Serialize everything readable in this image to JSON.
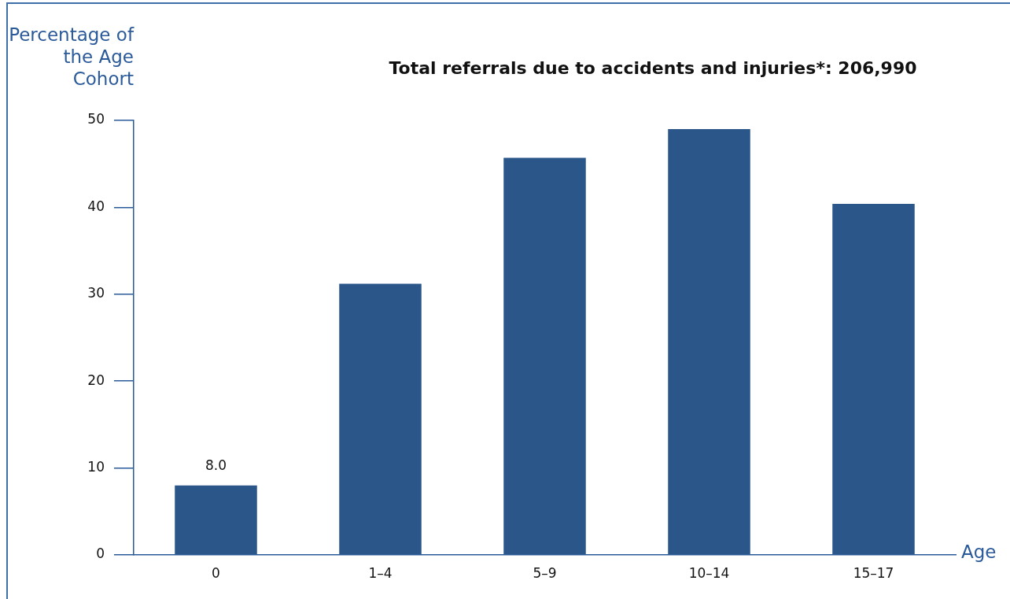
{
  "chart_data": {
    "type": "bar",
    "title": "Total referrals due to accidents and injuries*: 206,990",
    "ylabel": "Percentage of the Age Cohort",
    "xlabel": "Age",
    "categories": [
      "0",
      "1–4",
      "5–9",
      "10–14",
      "15–17"
    ],
    "values": [
      8.0,
      31.2,
      45.7,
      49.0,
      40.4
    ],
    "color": "#2a5689",
    "value_labels": [
      "8.0",
      null,
      null,
      null,
      null
    ],
    "ylim": [
      0,
      50
    ],
    "yticks": [
      0,
      10,
      20,
      30,
      40,
      50
    ],
    "grid": false,
    "legend": false
  }
}
